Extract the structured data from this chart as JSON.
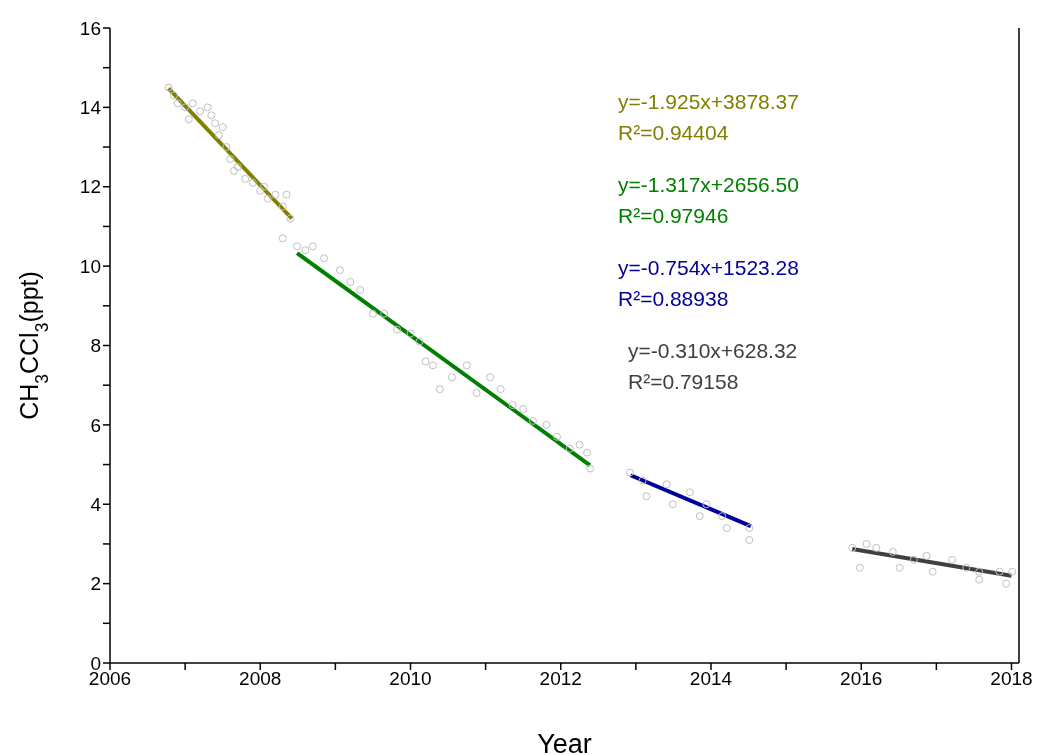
{
  "chart_data": {
    "type": "scatter",
    "xlabel": "Year",
    "ylabel": "CH$_{3}$CCl$_{3}$(ppt)",
    "xlim": [
      2006,
      2018.1
    ],
    "ylim": [
      0,
      16
    ],
    "xticks": [
      2006,
      {
        "value": 2007,
        "label": null
      },
      2008,
      {
        "value": 2009,
        "label": null
      },
      2010,
      {
        "value": 2011,
        "label": null
      },
      2012,
      {
        "value": 2013,
        "label": null
      },
      2014,
      {
        "value": 2015,
        "label": null
      },
      2016,
      {
        "value": 2017,
        "label": null
      },
      2018
    ],
    "yticks": [
      0,
      {
        "value": 1,
        "label": null
      },
      2,
      {
        "value": 3,
        "label": null
      },
      4,
      {
        "value": 5,
        "label": null
      },
      6,
      {
        "value": 7,
        "label": null
      },
      8,
      {
        "value": 9,
        "label": null
      },
      10,
      {
        "value": 11,
        "label": null
      },
      12,
      {
        "value": 13,
        "label": null
      },
      14,
      {
        "value": 15,
        "label": null
      },
      16
    ],
    "grid": false,
    "series": [
      {
        "marker": "circle",
        "color": "#c0c0c0",
        "x": [
          2006.78,
          2006.85,
          2006.9,
          2007.0,
          2007.05,
          2007.1,
          2007.2,
          2007.3,
          2007.35,
          2007.4,
          2007.45,
          2007.5,
          2007.55,
          2007.6,
          2007.65,
          2007.7,
          2007.8,
          2007.9,
          2008.0,
          2008.05,
          2008.1,
          2008.2,
          2008.3,
          2008.35,
          2008.4,
          2008.3,
          2008.49,
          2008.6,
          2008.7,
          2008.85,
          2009.06,
          2009.2,
          2009.33,
          2009.5,
          2009.65,
          2009.82,
          2010.0,
          2010.12,
          2010.2,
          2010.3,
          2010.39,
          2010.55,
          2010.75,
          2010.88,
          2011.06,
          2011.2,
          2011.36,
          2011.5,
          2011.63,
          2011.81,
          2011.95,
          2012.12,
          2012.25,
          2012.35,
          2012.39,
          2012.92,
          2013.09,
          2013.14,
          2013.41,
          2013.49,
          2013.72,
          2013.85,
          2013.94,
          2014.15,
          2014.21,
          2014.51,
          2014.51,
          2015.88,
          2015.98,
          2016.07,
          2016.2,
          2016.42,
          2016.51,
          2016.7,
          2016.87,
          2016.95,
          2017.21,
          2017.4,
          2017.57,
          2017.57,
          2017.84,
          2017.93,
          2018.01
        ],
        "values": [
          14.5,
          14.3,
          14.1,
          14.0,
          13.7,
          14.1,
          13.9,
          14.0,
          13.8,
          13.6,
          13.3,
          13.5,
          13.0,
          12.7,
          12.4,
          12.5,
          12.2,
          12.1,
          11.9,
          12.0,
          11.7,
          11.8,
          11.5,
          11.8,
          11.2,
          10.7,
          10.5,
          10.4,
          10.5,
          10.2,
          9.9,
          9.6,
          9.4,
          8.8,
          8.8,
          8.4,
          8.3,
          8.1,
          7.6,
          7.5,
          6.9,
          7.2,
          7.5,
          6.8,
          7.2,
          6.9,
          6.5,
          6.4,
          6.1,
          6.0,
          5.7,
          5.4,
          5.5,
          5.3,
          4.9,
          4.8,
          4.6,
          4.2,
          4.5,
          4.0,
          4.3,
          3.7,
          4.0,
          3.7,
          3.4,
          3.4,
          3.1,
          2.9,
          2.4,
          3.0,
          2.9,
          2.8,
          2.4,
          2.6,
          2.7,
          2.3,
          2.6,
          2.4,
          2.3,
          2.1,
          2.3,
          2.0,
          2.3
        ]
      },
      {
        "type": "line",
        "marker": "none",
        "color": "#808000",
        "name": "y=-1.925x+3878.37\nR²=0.94404",
        "x": [
          2006.78,
          2008.42
        ],
        "values": [
          14.48,
          11.2
        ]
      },
      {
        "type": "line",
        "marker": "none",
        "color": "#008000",
        "name": "y=-1.317x+2656.50\nR²=0.97946",
        "x": [
          2008.49,
          2012.39
        ],
        "values": [
          10.33,
          4.98
        ]
      },
      {
        "type": "line",
        "marker": "none",
        "color": "#000099",
        "name": "y=-0.754x+1523.28\nR²=0.88938",
        "x": [
          2012.93,
          2014.53
        ],
        "values": [
          4.73,
          3.45
        ]
      },
      {
        "type": "line",
        "marker": "none",
        "color": "#404040",
        "name": "y=-0.310x+628.32\nR²=0.79158",
        "x": [
          2015.88,
          2018.0
        ],
        "values": [
          2.87,
          2.2
        ]
      }
    ]
  }
}
